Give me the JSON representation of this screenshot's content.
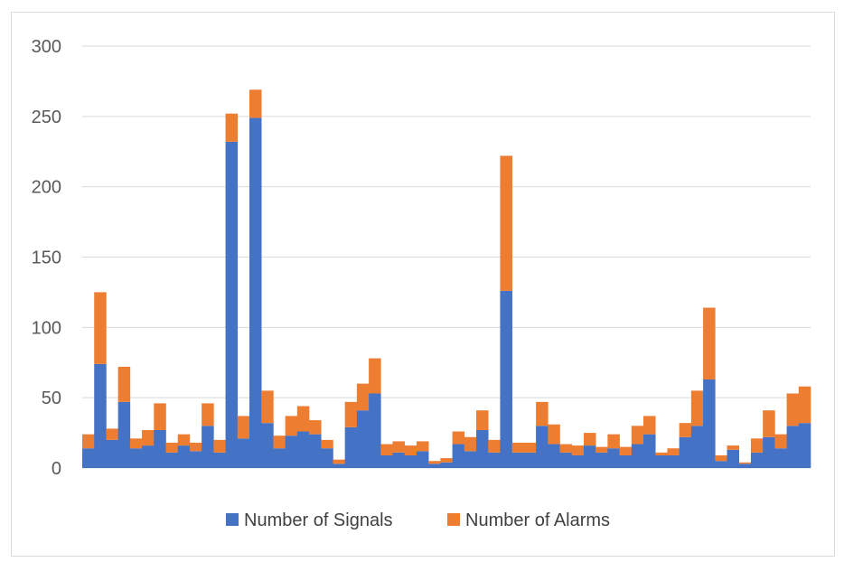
{
  "chart_data": {
    "type": "bar",
    "stacked": true,
    "title": "",
    "xlabel": "",
    "ylabel": "",
    "ylim": [
      0,
      300
    ],
    "yticks": [
      0,
      50,
      100,
      150,
      200,
      250,
      300
    ],
    "grid": true,
    "legend_position": "bottom",
    "series": [
      {
        "name": "Number of Signals",
        "color": "#4472c4",
        "values": [
          14,
          74,
          20,
          47,
          14,
          16,
          27,
          11,
          16,
          12,
          30,
          11,
          232,
          21,
          249,
          32,
          14,
          23,
          26,
          24,
          14,
          3,
          29,
          41,
          53,
          9,
          11,
          9,
          12,
          3,
          4,
          17,
          12,
          27,
          11,
          126,
          11,
          11,
          30,
          17,
          11,
          9,
          16,
          11,
          14,
          9,
          17,
          24,
          9,
          9,
          22,
          30,
          63,
          5,
          13,
          3,
          11,
          22,
          14,
          30,
          32
        ]
      },
      {
        "name": "Number of Alarms",
        "color": "#ed7d31",
        "values": [
          10,
          51,
          8,
          25,
          7,
          11,
          19,
          7,
          8,
          6,
          16,
          9,
          20,
          16,
          20,
          23,
          9,
          14,
          18,
          10,
          6,
          3,
          18,
          19,
          25,
          8,
          8,
          7,
          7,
          2,
          3,
          9,
          10,
          14,
          9,
          96,
          7,
          7,
          17,
          14,
          6,
          7,
          9,
          4,
          10,
          6,
          13,
          13,
          2,
          5,
          10,
          25,
          51,
          4,
          3,
          1,
          10,
          19,
          10,
          23,
          26
        ]
      }
    ]
  }
}
